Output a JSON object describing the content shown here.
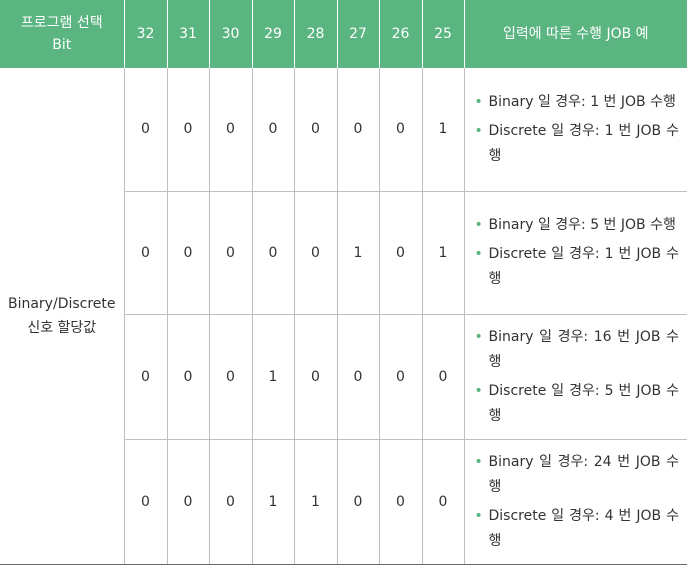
{
  "header": {
    "program_select_line1": "프로그램 선택",
    "program_select_line2": "Bit",
    "bits": [
      "32",
      "31",
      "30",
      "29",
      "28",
      "27",
      "26",
      "25"
    ],
    "example_header": "입력에 따른 수행 JOB 예"
  },
  "group_label_line1": "Binary/Discrete",
  "group_label_line2": "신호 할당값",
  "rows": [
    {
      "bits": [
        "0",
        "0",
        "0",
        "0",
        "0",
        "0",
        "0",
        "1"
      ],
      "examples": [
        "Binary 일 경우: 1 번 JOB 수행",
        "Discrete 일 경우: 1 번 JOB 수행"
      ]
    },
    {
      "bits": [
        "0",
        "0",
        "0",
        "0",
        "0",
        "1",
        "0",
        "1"
      ],
      "examples": [
        "Binary 일 경우: 5 번 JOB 수행",
        "Discrete 일 경우: 1 번 JOB 수행"
      ]
    },
    {
      "bits": [
        "0",
        "0",
        "0",
        "1",
        "0",
        "0",
        "0",
        "0"
      ],
      "examples": [
        "Binary 일 경우: 16 번 JOB 수행",
        "Discrete 일 경우: 5 번 JOB 수행"
      ]
    },
    {
      "bits": [
        "0",
        "0",
        "0",
        "1",
        "1",
        "0",
        "0",
        "0"
      ],
      "examples": [
        "Binary 일 경우: 24 번 JOB 수행",
        "Discrete 일 경우: 4 번 JOB 수행"
      ]
    }
  ],
  "colors": {
    "header_bg": "#5ab581",
    "header_text": "#ffffff",
    "bullet": "#5ab581",
    "grid": "#bfbfbf"
  },
  "icons": {
    "bullet": "bullet-dot-icon"
  }
}
